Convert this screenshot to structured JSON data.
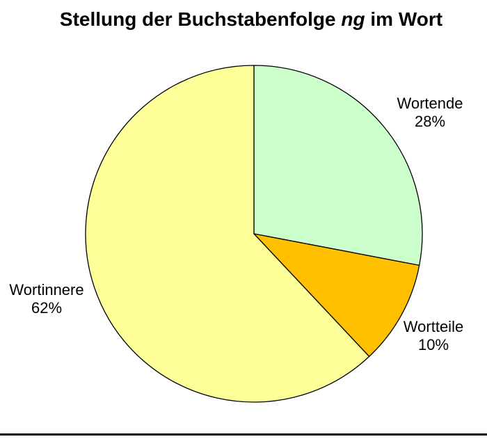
{
  "title": {
    "prefix": "Stellung der Buchstabenfolge ",
    "italic": "ng",
    "suffix": " im Wort"
  },
  "chart_data": {
    "type": "pie",
    "title": "Stellung der Buchstabenfolge ng im Wort",
    "start_position": "12-o-clock",
    "direction": "clockwise",
    "legend": "none",
    "labels_outside": true,
    "stroke_color": "#000000",
    "background_color": "#ffffff",
    "slices": [
      {
        "label": "Wortende",
        "value": 28,
        "pct_label": "28%",
        "color": "#CCFFCC"
      },
      {
        "label": "Wortteile",
        "value": 10,
        "pct_label": "10%",
        "color": "#FFC000"
      },
      {
        "label": "Wortinnere",
        "value": 62,
        "pct_label": "62%",
        "color": "#FFFF99"
      }
    ]
  },
  "footer": {
    "rule_color": "#000000"
  }
}
